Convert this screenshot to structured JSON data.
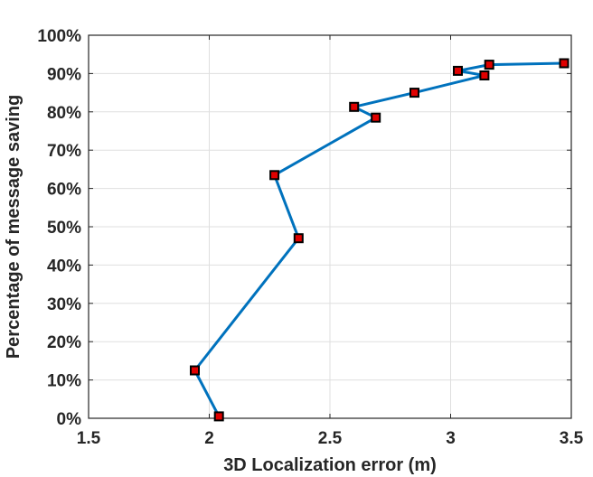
{
  "chart_data": {
    "type": "line",
    "title": "",
    "xlabel": "3D Localization error (m)",
    "ylabel": "Percentage of message saving",
    "xlim": [
      1.5,
      3.5
    ],
    "ylim": [
      0,
      100
    ],
    "x_ticks": [
      "1.5",
      "2",
      "2.5",
      "3",
      "3.5"
    ],
    "y_ticks": [
      "0%",
      "10%",
      "20%",
      "30%",
      "40%",
      "50%",
      "60%",
      "70%",
      "80%",
      "90%",
      "100%"
    ],
    "x_tick_values": [
      1.5,
      2,
      2.5,
      3,
      3.5
    ],
    "y_tick_values": [
      0,
      10,
      20,
      30,
      40,
      50,
      60,
      70,
      80,
      90,
      100
    ],
    "grid": true,
    "legend": "none",
    "series": [
      {
        "x": [
          2.04,
          1.94,
          2.37,
          2.27,
          2.69,
          2.6,
          2.85,
          3.14,
          3.03,
          3.16,
          3.47
        ],
        "y": [
          0.5,
          12.5,
          47,
          63.5,
          78.5,
          81.3,
          85,
          89.5,
          90.7,
          92.3,
          92.7
        ],
        "line_color": "#0072bd",
        "marker": "square",
        "marker_fill": "#e00000",
        "marker_edge": "#000000"
      }
    ]
  }
}
